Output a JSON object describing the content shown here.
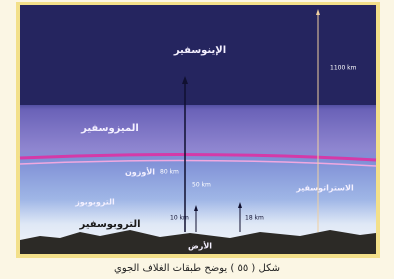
{
  "diagram": {
    "layers": {
      "ionosphere": "الإينوسفير",
      "mesosphere": "الميزوسفير",
      "ozone": "الأوزون",
      "stratosphere": "الاستراتوسفير",
      "tropopause": "التروبوبوز",
      "troposphere": "التروبوسفير",
      "earth": "الأرض"
    },
    "distances": {
      "top": "1100 km",
      "mesosphere": "80 km",
      "stratosphere": "50 km",
      "tropopause": "10 km",
      "troposphere": "18 km"
    },
    "caption": "شكل ( ٥٥ ) يوضح طبقات الغلاف الجوي"
  }
}
